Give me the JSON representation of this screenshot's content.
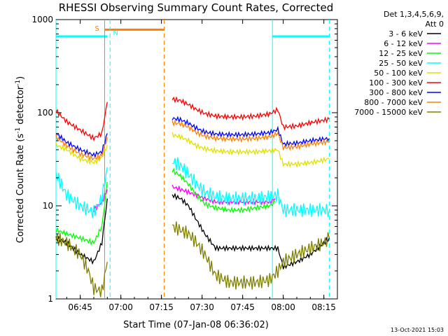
{
  "chart_data": {
    "type": "line",
    "title": "RHESSI Observing Summary Count Rates, Corrected",
    "xlabel": "Start Time (07-Jan-08 06:36:02)",
    "ylabel": "Corrected Count Rate (s⁻¹ detector⁻¹)",
    "ylabel_parts": {
      "main": "Corrected Count Rate (s",
      "sup1": "-1",
      "mid": " detector",
      "sup2": "-1",
      "end": ")"
    },
    "yscale": "log",
    "ylim": [
      1,
      1000
    ],
    "xlim": [
      "06:36:02",
      "08:20:00"
    ],
    "x_ticks": [
      "06:45",
      "07:00",
      "07:15",
      "07:30",
      "07:45",
      "08:00",
      "08:15"
    ],
    "y_ticks": [
      "1",
      "10",
      "100",
      "1000"
    ],
    "legend_header": [
      "Det 1,3,4,5,6,9,",
      "Att 0"
    ],
    "legend_position": "right",
    "footer_date": "13-Oct-2021 15:03",
    "annotations": [
      {
        "label": "S",
        "color": "#ff8000",
        "start": "06:54:00",
        "end": "07:16:00"
      },
      {
        "label": "N",
        "color": "#00ffff",
        "start": "06:55:00",
        "end": "07:16:00"
      }
    ],
    "flag_bars": [
      {
        "color": "#00ffff",
        "start": "06:36:02",
        "end": "06:55:00",
        "y": 660
      },
      {
        "color": "#ff8000",
        "start": "06:54:00",
        "end": "07:16:00",
        "y": 780
      },
      {
        "color": "#00ffff",
        "start": "07:56:00",
        "end": "08:17:00",
        "y": 660
      }
    ],
    "vlines": [
      {
        "x": "06:36:02",
        "color": "#00ffff",
        "style": "solid"
      },
      {
        "x": "06:54:00",
        "color": "#ff8000",
        "style": "solid"
      },
      {
        "x": "06:56:00",
        "color": "#00ffff",
        "style": "dashed"
      },
      {
        "x": "07:16:00",
        "color": "#ff8000",
        "style": "dashed"
      },
      {
        "x": "07:56:00",
        "color": "#00ffff",
        "style": "solid"
      },
      {
        "x": "08:17:00",
        "color": "#00ffff",
        "style": "dashed"
      }
    ],
    "series": [
      {
        "name": "3 - 6 keV",
        "color": "#000000",
        "segments": [
          {
            "x": [
              "06:36:02",
              "06:40",
              "06:45",
              "06:50",
              "06:53",
              "06:55"
            ],
            "y": [
              4.5,
              4.0,
              3.0,
              2.5,
              4.0,
              12
            ]
          },
          {
            "x": [
              "07:19",
              "07:22",
              "07:25",
              "07:28",
              "07:31",
              "07:35",
              "07:40",
              "07:45",
              "07:50",
              "07:55",
              "07:58",
              "08:00",
              "08:05",
              "08:10",
              "08:15",
              "08:17"
            ],
            "y": [
              13,
              12,
              10,
              7,
              5,
              3.5,
              3.5,
              3.5,
              3.5,
              3.5,
              3.5,
              2.2,
              2.5,
              3.0,
              4.0,
              4.5
            ]
          }
        ]
      },
      {
        "name": "6 - 12 keV",
        "color": "#ff00ff",
        "segments": [
          {
            "x": [
              "06:50",
              "06:53",
              "06:55"
            ],
            "y": [
              9,
              11,
              15
            ]
          },
          {
            "x": [
              "07:19",
              "07:22",
              "07:25",
              "07:28",
              "07:31",
              "07:35",
              "07:40",
              "07:45",
              "07:50",
              "07:55",
              "07:57"
            ],
            "y": [
              16,
              15,
              14,
              13,
              12,
              11,
              11,
              11,
              11,
              11,
              12
            ]
          }
        ]
      },
      {
        "name": "12 - 25 keV",
        "color": "#00ff00",
        "segments": [
          {
            "x": [
              "06:36:02",
              "06:40",
              "06:45",
              "06:50",
              "06:53",
              "06:55"
            ],
            "y": [
              5.5,
              5.0,
              4.5,
              4.0,
              6.0,
              18
            ]
          },
          {
            "x": [
              "07:19",
              "07:22",
              "07:25",
              "07:28",
              "07:31",
              "07:35",
              "07:40",
              "07:45",
              "07:50",
              "07:55",
              "07:57"
            ],
            "y": [
              24,
              21,
              17,
              13,
              10.5,
              9.5,
              9,
              9,
              9.5,
              10,
              11
            ]
          }
        ]
      },
      {
        "name": "25 - 50 keV",
        "color": "#00ffff",
        "segments": [
          {
            "x": [
              "06:36:02",
              "06:40",
              "06:45",
              "06:50",
              "06:53",
              "06:55"
            ],
            "y": [
              22,
              13,
              10,
              8.5,
              12,
              26
            ]
          },
          {
            "x": [
              "07:19",
              "07:22",
              "07:25",
              "07:28",
              "07:31",
              "07:35",
              "07:40",
              "07:45",
              "07:50",
              "07:55",
              "07:58",
              "08:00",
              "08:05",
              "08:10",
              "08:15",
              "08:17"
            ],
            "y": [
              30,
              27,
              22,
              17,
              14,
              12.5,
              12,
              12,
              12,
              12.5,
              13,
              9,
              9,
              9,
              9,
              9
            ]
          }
        ]
      },
      {
        "name": "50 - 100 keV",
        "color": "#e0e000",
        "segments": [
          {
            "x": [
              "06:36:02",
              "06:40",
              "06:45",
              "06:50",
              "06:53",
              "06:55"
            ],
            "y": [
              45,
              40,
              32,
              29,
              33,
              45
            ]
          },
          {
            "x": [
              "07:19",
              "07:22",
              "07:25",
              "07:28",
              "07:31",
              "07:35",
              "07:40",
              "07:45",
              "07:50",
              "07:55",
              "07:58",
              "08:00",
              "08:05",
              "08:10",
              "08:15",
              "08:17"
            ],
            "y": [
              58,
              55,
              50,
              44,
              41,
              39,
              38,
              38,
              38,
              39,
              40,
              28,
              28,
              29,
              31,
              32
            ]
          }
        ]
      },
      {
        "name": "100 - 300 keV",
        "color": "#ff0000",
        "segments": [
          {
            "x": [
              "06:36:02",
              "06:40",
              "06:45",
              "06:50",
              "06:53",
              "06:55"
            ],
            "y": [
              105,
              80,
              65,
              53,
              60,
              130
            ]
          },
          {
            "x": [
              "07:19",
              "07:22",
              "07:25",
              "07:28",
              "07:31",
              "07:35",
              "07:40",
              "07:45",
              "07:50",
              "07:55",
              "07:58",
              "08:00",
              "08:05",
              "08:10",
              "08:15",
              "08:17"
            ],
            "y": [
              140,
              135,
              122,
              108,
              98,
              92,
              90,
              90,
              92,
              97,
              108,
              70,
              72,
              78,
              83,
              85
            ]
          }
        ]
      },
      {
        "name": "300 - 800 keV",
        "color": "#0000ff",
        "segments": [
          {
            "x": [
              "06:36:02",
              "06:40",
              "06:45",
              "06:50",
              "06:53",
              "06:55"
            ],
            "y": [
              60,
              48,
              40,
              35,
              38,
              60
            ]
          },
          {
            "x": [
              "07:19",
              "07:22",
              "07:25",
              "07:28",
              "07:31",
              "07:35",
              "07:40",
              "07:45",
              "07:50",
              "07:55",
              "07:58",
              "08:00",
              "08:05",
              "08:10",
              "08:15",
              "08:17"
            ],
            "y": [
              87,
              84,
              77,
              68,
              62,
              59,
              58,
              58,
              59,
              61,
              66,
              46,
              47,
              50,
              52,
              53
            ]
          }
        ]
      },
      {
        "name": "800 - 7000 keV",
        "color": "#ff8000",
        "segments": [
          {
            "x": [
              "06:36:02",
              "06:40",
              "06:45",
              "06:50",
              "06:53",
              "06:55"
            ],
            "y": [
              55,
              44,
              36,
              32,
              35,
              55
            ]
          },
          {
            "x": [
              "07:19",
              "07:22",
              "07:25",
              "07:28",
              "07:31",
              "07:35",
              "07:40",
              "07:45",
              "07:50",
              "07:55",
              "07:58",
              "08:00",
              "08:05",
              "08:10",
              "08:15",
              "08:17"
            ],
            "y": [
              78,
              76,
              70,
              61,
              56,
              53,
              52,
              52,
              53,
              55,
              60,
              42,
              43,
              46,
              48,
              49
            ]
          }
        ]
      },
      {
        "name": "7000 - 15000 keV",
        "color": "#808000",
        "segments": [
          {
            "x": [
              "06:36:02",
              "06:40",
              "06:45",
              "06:48",
              "06:50",
              "06:53",
              "06:55"
            ],
            "y": [
              4.5,
              4,
              3,
              2,
              1.3,
              1.2,
              2.5
            ]
          },
          {
            "x": [
              "07:19",
              "07:22",
              "07:25",
              "07:28",
              "07:31",
              "07:35",
              "07:40",
              "07:45",
              "07:50",
              "07:55",
              "07:58",
              "08:00",
              "08:05",
              "08:10",
              "08:15",
              "08:17"
            ],
            "y": [
              6,
              5.5,
              5,
              4,
              3,
              1.8,
              1.5,
              1.5,
              1.5,
              1.6,
              2,
              2.5,
              3,
              3.5,
              4,
              4.5
            ]
          }
        ]
      }
    ]
  }
}
